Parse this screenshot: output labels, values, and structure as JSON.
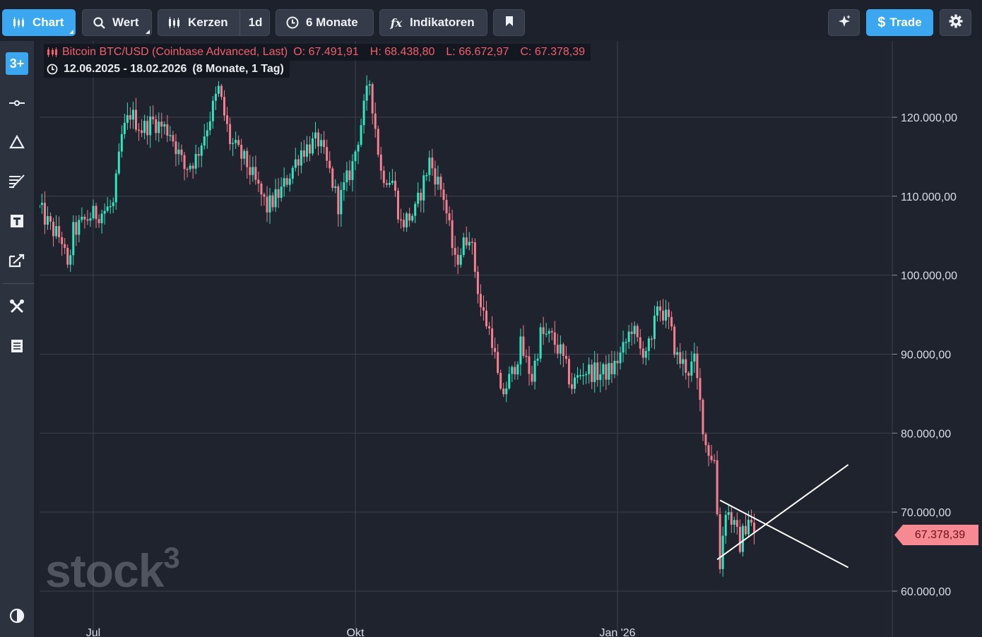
{
  "toolbar": {
    "chart_label": "Chart",
    "value_label": "Wert",
    "candles_label": "Kerzen",
    "interval_label": "1d",
    "range_label": "6 Monate",
    "indicators_label": "Indikatoren",
    "trade_label": "Trade",
    "icons": {
      "chart": "candlestick-chart-icon",
      "value": "search-icon",
      "candles": "candles-icon",
      "range": "clock-icon",
      "indicators": "fx-icon",
      "bookmark": "bookmark-icon",
      "ai": "sparkle-icon",
      "trade": "dollar-icon",
      "settings": "gear-icon"
    }
  },
  "sidebar": {
    "logo_text": "3+",
    "items": [
      "line-tool-icon",
      "triangle-tool-icon",
      "fib-tool-icon",
      "text-tool-icon",
      "annotation-tool-icon",
      "tools-icon",
      "list-icon",
      "contrast-icon"
    ]
  },
  "legend": {
    "instrument": "Bitcoin BTC/USD (Coinbase Advanced, Last)",
    "open": "O: 67.491,91",
    "high": "H: 68.438,80",
    "low": "L: 66.672,97",
    "close": "C: 67.378,39",
    "date_range": "12.06.2025 - 18.02.2026",
    "period": "(8 Monate, 1 Tag)"
  },
  "watermark": {
    "text": "stock",
    "superscript": "3"
  },
  "colors": {
    "up": "#2ee6c2",
    "down": "#f57f8f",
    "grid": "#3b404c",
    "background": "#1f232d",
    "price_tag": "#f78992",
    "trendline": "#ffffff",
    "accent": "#3aa7f0"
  },
  "chart_data": {
    "type": "candlestick",
    "title": "Bitcoin BTC/USD (Coinbase Advanced, Last)",
    "y_axis": {
      "side": "right",
      "ylim": [
        55000,
        128000
      ],
      "ticks": [
        "60.000,00",
        "70.000,00",
        "80.000,00",
        "90.000,00",
        "100.000,00",
        "110.000,00",
        "120.000,00"
      ],
      "tick_values": [
        60000,
        70000,
        80000,
        90000,
        100000,
        110000,
        120000
      ]
    },
    "x_axis": {
      "range": [
        "2025-06-12",
        "2026-02-18"
      ],
      "ticks": [
        "Jul",
        "Okt",
        "Jan '26"
      ],
      "tick_dates": [
        "2025-07-01",
        "2025-10-01",
        "2026-01-01"
      ]
    },
    "grid": true,
    "last_price": "67.378,39",
    "last_value": 67378.39,
    "close_path": [
      [
        "2025-06-12",
        108500
      ],
      [
        "2025-06-16",
        106000
      ],
      [
        "2025-06-20",
        104500
      ],
      [
        "2025-06-22",
        100500
      ],
      [
        "2025-06-24",
        105500
      ],
      [
        "2025-06-30",
        107500
      ],
      [
        "2025-07-04",
        108000
      ],
      [
        "2025-07-08",
        108800
      ],
      [
        "2025-07-11",
        117500
      ],
      [
        "2025-07-14",
        120500
      ],
      [
        "2025-07-18",
        118500
      ],
      [
        "2025-07-22",
        119500
      ],
      [
        "2025-07-28",
        118200
      ],
      [
        "2025-08-02",
        113500
      ],
      [
        "2025-08-06",
        114800
      ],
      [
        "2025-08-10",
        119000
      ],
      [
        "2025-08-14",
        123500
      ],
      [
        "2025-08-18",
        117000
      ],
      [
        "2025-08-24",
        114000
      ],
      [
        "2025-08-31",
        108500
      ],
      [
        "2025-09-05",
        110700
      ],
      [
        "2025-09-12",
        115800
      ],
      [
        "2025-09-18",
        117000
      ],
      [
        "2025-09-22",
        113000
      ],
      [
        "2025-09-25",
        109000
      ],
      [
        "2025-09-30",
        114000
      ],
      [
        "2025-10-06",
        124500
      ],
      [
        "2025-10-10",
        113000
      ],
      [
        "2025-10-14",
        112000
      ],
      [
        "2025-10-17",
        106500
      ],
      [
        "2025-10-22",
        108000
      ],
      [
        "2025-10-27",
        114500
      ],
      [
        "2025-11-01",
        110000
      ],
      [
        "2025-11-05",
        101500
      ],
      [
        "2025-11-10",
        105500
      ],
      [
        "2025-11-14",
        96000
      ],
      [
        "2025-11-18",
        92000
      ],
      [
        "2025-11-21",
        84500
      ],
      [
        "2025-11-25",
        87500
      ],
      [
        "2025-11-28",
        91000
      ],
      [
        "2025-12-02",
        87000
      ],
      [
        "2025-12-05",
        92500
      ],
      [
        "2025-12-09",
        92000
      ],
      [
        "2025-12-12",
        90200
      ],
      [
        "2025-12-16",
        86000
      ],
      [
        "2025-12-20",
        88000
      ],
      [
        "2025-12-26",
        87500
      ],
      [
        "2025-12-30",
        88000
      ],
      [
        "2026-01-03",
        90500
      ],
      [
        "2026-01-06",
        93500
      ],
      [
        "2026-01-09",
        90500
      ],
      [
        "2026-01-13",
        91000
      ],
      [
        "2026-01-15",
        96500
      ],
      [
        "2026-01-19",
        94000
      ],
      [
        "2026-01-22",
        89500
      ],
      [
        "2026-01-26",
        88000
      ],
      [
        "2026-01-28",
        89000
      ],
      [
        "2026-02-01",
        78500
      ],
      [
        "2026-02-04",
        76500
      ],
      [
        "2026-02-06",
        63500
      ],
      [
        "2026-02-08",
        70500
      ],
      [
        "2026-02-10",
        69000
      ],
      [
        "2026-02-13",
        66000
      ],
      [
        "2026-02-16",
        69500
      ],
      [
        "2026-02-18",
        67378.39
      ]
    ],
    "trendlines": [
      {
        "from": [
          "2026-02-05",
          64000
        ],
        "to": [
          "2026-03-23",
          76000
        ]
      },
      {
        "from": [
          "2026-02-06",
          71500
        ],
        "to": [
          "2026-03-23",
          63000
        ]
      }
    ]
  }
}
